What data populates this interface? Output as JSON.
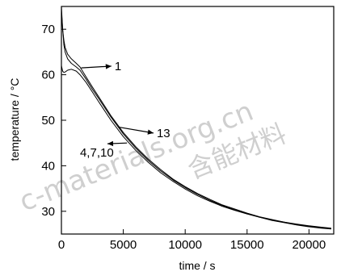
{
  "watermark": {
    "text_left": "c-materials.org.cn",
    "text_right": "含能材料"
  },
  "chart_data": {
    "type": "line",
    "xlabel": "time / s",
    "ylabel": "temperature / °C",
    "xlim": [
      0,
      22000
    ],
    "ylim": [
      25,
      75
    ],
    "xticks": [
      0,
      5000,
      10000,
      15000,
      20000
    ],
    "yticks": [
      30,
      40,
      50,
      60,
      70
    ],
    "grid": false,
    "series": [
      {
        "name": "1",
        "x": [
          0,
          100,
          200,
          300,
          500,
          800,
          1200,
          1500,
          2000,
          2500,
          3000,
          4000,
          5000,
          6000,
          7000,
          8000,
          9000,
          10000,
          11000,
          12000,
          13000,
          14000,
          15000,
          16000,
          17000,
          18000,
          19000,
          20000,
          21000,
          21800
        ],
        "y": [
          74,
          70,
          67.5,
          66,
          64.5,
          63.5,
          62.5,
          61.7,
          59.5,
          57.3,
          55.2,
          51,
          47.3,
          44.2,
          41.5,
          39.2,
          37.1,
          35.4,
          33.9,
          32.6,
          31.4,
          30.5,
          29.6,
          28.8,
          28.2,
          27.6,
          27.2,
          26.8,
          26.5,
          26.3
        ]
      },
      {
        "name": "13",
        "x": [
          0,
          100,
          200,
          300,
          500,
          800,
          1200,
          1500,
          2000,
          2500,
          3000,
          4000,
          5000,
          6000,
          7000,
          8000,
          9000,
          10000,
          11000,
          12000,
          13000,
          14000,
          15000,
          16000,
          17000,
          18000,
          19000,
          20000,
          21000,
          21800
        ],
        "y": [
          75,
          70,
          66.5,
          65,
          63.5,
          62.5,
          61.7,
          61.0,
          59.0,
          56.8,
          54.8,
          50.7,
          47.0,
          43.9,
          41.2,
          38.9,
          36.9,
          35.2,
          33.7,
          32.4,
          31.3,
          30.3,
          29.5,
          28.7,
          28.1,
          27.6,
          27.1,
          26.7,
          26.4,
          26.2
        ]
      },
      {
        "name": "4,7,10",
        "x": [
          0,
          100,
          200,
          300,
          500,
          800,
          1200,
          1500,
          2000,
          2500,
          3000,
          4000,
          5000,
          6000,
          7000,
          8000,
          9000,
          10000,
          11000,
          12000,
          13000,
          14000,
          15000,
          16000,
          17000,
          18000,
          19000,
          20000,
          21000,
          21800
        ],
        "y": [
          62,
          60.8,
          60.5,
          60.6,
          61.0,
          61.2,
          60.8,
          60.0,
          58.3,
          56.2,
          54.1,
          50.0,
          46.4,
          43.4,
          40.8,
          38.5,
          36.6,
          34.9,
          33.4,
          32.2,
          31.1,
          30.2,
          29.4,
          28.7,
          28.0,
          27.5,
          27.0,
          26.6,
          26.3,
          26.1
        ]
      }
    ],
    "annotations": [
      {
        "text": "1",
        "series": "1",
        "at_x": 1600,
        "at_y": 61.5,
        "label_x": 4300,
        "label_y": 61.0
      },
      {
        "text": "13",
        "series": "13",
        "at_x": 4600,
        "at_y": 48.5,
        "label_x": 7700,
        "label_y": 46.3
      },
      {
        "text": "4,7,10",
        "series": "4,7,10",
        "at_x": 5300,
        "at_y": 45.0,
        "label_x": 1500,
        "label_y": 42.0
      }
    ]
  }
}
